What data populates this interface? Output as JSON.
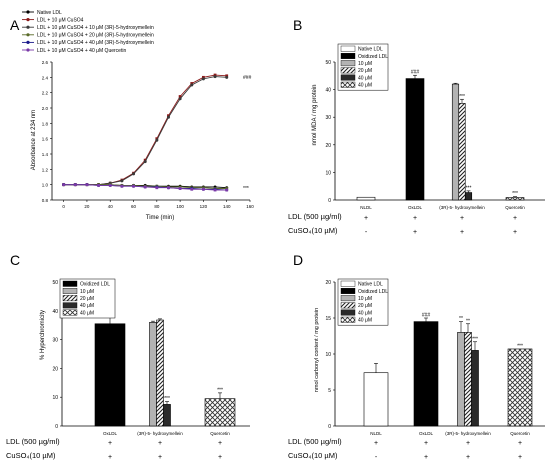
{
  "panels": [
    {
      "letter": "A",
      "chart_data": {
        "type": "line",
        "ylabel": "Absorbance at 234 nm",
        "xlabel": "Time (min)",
        "xlim": [
          -10,
          160
        ],
        "ylim": [
          0.8,
          2.6
        ],
        "x_ticks": [
          0,
          20,
          40,
          60,
          80,
          100,
          120,
          140,
          160
        ],
        "y_ticks": [
          0.8,
          1.0,
          1.2,
          1.4,
          1.6,
          1.8,
          2.0,
          2.2,
          2.4,
          2.6
        ],
        "x": [
          0,
          10,
          20,
          30,
          40,
          50,
          60,
          70,
          80,
          90,
          100,
          110,
          120,
          130,
          140
        ],
        "series": [
          {
            "name": "Native LDL",
            "color": "#000000",
            "values": [
              1.0,
              1.0,
              1.0,
              1.0,
              1.0,
              0.99,
              0.99,
              0.99,
              0.98,
              0.98,
              0.98,
              0.97,
              0.97,
              0.97,
              0.96
            ]
          },
          {
            "name": "LDL + 10 μM CuSO4",
            "color": "#8b1a1a",
            "values": [
              1.0,
              1.0,
              1.0,
              1.0,
              1.02,
              1.06,
              1.15,
              1.32,
              1.6,
              1.9,
              2.15,
              2.32,
              2.4,
              2.43,
              2.42
            ]
          },
          {
            "name": "LDL + 10 μM CuSO4 + 10 μM (3R)-5-hydroxymellein",
            "color": "#3a3a3a",
            "values": [
              1.0,
              1.0,
              1.0,
              1.0,
              1.02,
              1.05,
              1.14,
              1.3,
              1.58,
              1.88,
              2.12,
              2.3,
              2.38,
              2.41,
              2.4
            ]
          },
          {
            "name": "LDL + 10 μM CuSO4 + 20 μM (3R)-5-hydroxymellein",
            "color": "#5a6b2a",
            "values": [
              1.0,
              1.0,
              1.0,
              1.0,
              1.0,
              0.99,
              0.99,
              0.98,
              0.98,
              0.97,
              0.97,
              0.96,
              0.96,
              0.95,
              0.95
            ]
          },
          {
            "name": "LDL + 10 μM CuSO4 + 40 μM (3R)-5-hydroxymellein",
            "color": "#1a1a8b",
            "values": [
              1.0,
              1.0,
              1.0,
              0.99,
              0.99,
              0.98,
              0.98,
              0.97,
              0.97,
              0.96,
              0.95,
              0.95,
              0.94,
              0.94,
              0.93
            ]
          },
          {
            "name": "LDL + 10 μM CuSO4 + 40 μM Quercetin",
            "color": "#7a3aa8",
            "values": [
              1.0,
              1.0,
              1.0,
              0.99,
              0.99,
              0.98,
              0.98,
              0.97,
              0.96,
              0.96,
              0.95,
              0.94,
              0.94,
              0.93,
              0.93
            ]
          }
        ],
        "annotations": [
          "###",
          "***"
        ]
      }
    },
    {
      "letter": "B",
      "chart_data": {
        "type": "bar",
        "ylabel": "nmol MDA / mg protein",
        "ylim": [
          0,
          50
        ],
        "y_ticks": [
          0,
          10,
          20,
          30,
          40,
          50
        ],
        "legend": [
          "Native LDL",
          "Oxidized LDL",
          "10 μM",
          "20 μM",
          "40 μM",
          "40 μM"
        ],
        "groups": [
          "NLDL",
          "OxLDL",
          "(3R)-5- hydroxymellein",
          "Quercetin"
        ],
        "bars": [
          {
            "group": 0,
            "pattern": "white",
            "value": 1.0,
            "error": 0,
            "label": ""
          },
          {
            "group": 1,
            "pattern": "black",
            "value": 44,
            "error": 1.2,
            "label": "###"
          },
          {
            "group": 2,
            "pattern": "lightgray",
            "value": 42,
            "error": 0.3,
            "label": ""
          },
          {
            "group": 2,
            "pattern": "hatch",
            "value": 35,
            "error": 1.5,
            "label": "***"
          },
          {
            "group": 2,
            "pattern": "darkgray",
            "value": 2.7,
            "error": 0.6,
            "label": "***"
          },
          {
            "group": 3,
            "pattern": "checker",
            "value": 0.9,
            "error": 0.3,
            "label": "***"
          }
        ]
      },
      "row1_label": "LDL (500 µg/ml)",
      "row1_signs": [
        "+",
        "+",
        "+",
        "+"
      ],
      "row2_label": "CuSO₄(10 µM)",
      "row2_signs": [
        "-",
        "+",
        "+",
        "+"
      ]
    },
    {
      "letter": "C",
      "chart_data": {
        "type": "bar",
        "ylabel": "% Hyperchromicity",
        "ylim": [
          0,
          50
        ],
        "y_ticks": [
          0,
          10,
          20,
          30,
          40,
          50
        ],
        "legend": [
          "Oxidized LDL",
          "10 μM",
          "20 μM",
          "40 μM",
          "40 μM"
        ],
        "groups": [
          "OxLDL",
          "(3R)-5- hydroxymellein",
          "Quercetin"
        ],
        "bars": [
          {
            "group": 0,
            "pattern": "black",
            "value": 35.5,
            "error": 4,
            "label": ""
          },
          {
            "group": 1,
            "pattern": "lightgray",
            "value": 36,
            "error": 0.4,
            "label": ""
          },
          {
            "group": 1,
            "pattern": "hatch",
            "value": 36.8,
            "error": 0.4,
            "label": ""
          },
          {
            "group": 1,
            "pattern": "darkgray",
            "value": 7.5,
            "error": 1,
            "label": "***"
          },
          {
            "group": 2,
            "pattern": "checker",
            "value": 9.5,
            "error": 2,
            "label": "***"
          }
        ]
      },
      "row1_label": "LDL (500 µg/ml)",
      "row1_signs": [
        "+",
        "+",
        "+"
      ],
      "row2_label": "CuSO₄(10 µM)",
      "row2_signs": [
        "+",
        "+",
        "+"
      ]
    },
    {
      "letter": "D",
      "chart_data": {
        "type": "bar",
        "ylabel": "nmol carbonyl content / mg protein",
        "ylim": [
          0,
          20
        ],
        "y_ticks": [
          0,
          5,
          10,
          15,
          20
        ],
        "legend": [
          "Native LDL",
          "Oxidized LDL",
          "10 μM",
          "20 μM",
          "40 μM",
          "40 μM"
        ],
        "groups": [
          "NLDL",
          "OxLDL",
          "(3R)-5- hydroxymellein",
          "Quercetin"
        ],
        "bars": [
          {
            "group": 0,
            "pattern": "white",
            "value": 7.4,
            "error": 1.3,
            "label": ""
          },
          {
            "group": 1,
            "pattern": "black",
            "value": 14.5,
            "error": 0.5,
            "label": "###"
          },
          {
            "group": 2,
            "pattern": "lightgray",
            "value": 13,
            "error": 1.5,
            "label": "**"
          },
          {
            "group": 2,
            "pattern": "hatch",
            "value": 13,
            "error": 1.2,
            "label": "**"
          },
          {
            "group": 2,
            "pattern": "darkgray",
            "value": 10.5,
            "error": 1.2,
            "label": "***"
          },
          {
            "group": 3,
            "pattern": "checker",
            "value": 10.7,
            "error": 0,
            "label": "***"
          }
        ]
      },
      "row1_label": "LDL (500 µg/ml)",
      "row1_signs": [
        "+",
        "+",
        "+",
        "+"
      ],
      "row2_label": "CuSO₄(10 µM)",
      "row2_signs": [
        "-",
        "+",
        "+",
        "+"
      ]
    }
  ]
}
